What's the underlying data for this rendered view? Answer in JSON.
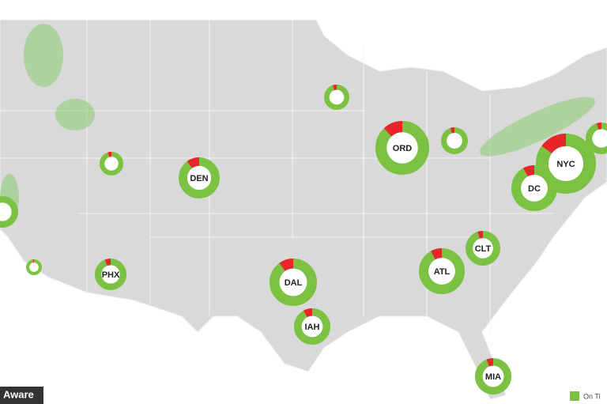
{
  "map": {
    "airports": [
      {
        "label": "ORD",
        "delayed": 12
      },
      {
        "label": "NYC",
        "delayed": 15
      },
      {
        "label": "DC",
        "delayed": 8
      },
      {
        "label": "DEN",
        "delayed": 10
      },
      {
        "label": "DAL",
        "delayed": 10
      },
      {
        "label": "ATL",
        "delayed": 8
      },
      {
        "label": "CLT",
        "delayed": 5
      },
      {
        "label": "PHX",
        "delayed": 6
      },
      {
        "label": "IAH",
        "delayed": 8
      },
      {
        "label": "MIA",
        "delayed": 6
      },
      {
        "label": null,
        "delayed": 5
      },
      {
        "label": null,
        "delayed": 5
      },
      {
        "label": null,
        "delayed": 5
      },
      {
        "label": null,
        "delayed": 5
      },
      {
        "label": null,
        "delayed": 2
      },
      {
        "label": null,
        "delayed": 0
      }
    ],
    "legend": {
      "label": "On Ti",
      "color": "#7cc242"
    },
    "delay_color": "#e8262a",
    "watermark": "Aware"
  }
}
